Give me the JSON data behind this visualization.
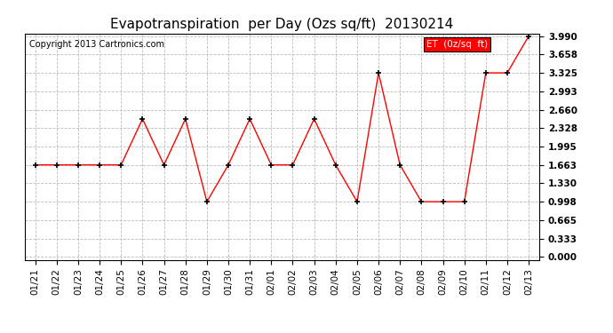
{
  "title": "Evapotranspiration  per Day (Ozs sq/ft)  20130214",
  "copyright": "Copyright 2013 Cartronics.com",
  "legend_label": "ET  (0z/sq  ft)",
  "x_labels": [
    "01/21",
    "01/22",
    "01/23",
    "01/24",
    "01/25",
    "01/26",
    "01/27",
    "01/28",
    "01/29",
    "01/30",
    "01/31",
    "02/01",
    "02/02",
    "02/03",
    "02/04",
    "02/05",
    "02/06",
    "02/07",
    "02/08",
    "02/09",
    "02/10",
    "02/11",
    "02/12",
    "02/13"
  ],
  "y_values": [
    1.663,
    1.663,
    1.663,
    1.663,
    1.663,
    2.494,
    1.663,
    2.494,
    0.998,
    1.663,
    2.494,
    1.663,
    1.663,
    2.494,
    1.663,
    0.998,
    3.325,
    1.663,
    0.998,
    0.998,
    0.998,
    3.325,
    3.325,
    3.99
  ],
  "y_ticks": [
    0.0,
    0.333,
    0.665,
    0.998,
    1.33,
    1.663,
    1.995,
    2.328,
    2.66,
    2.993,
    3.325,
    3.658,
    3.99
  ],
  "line_color": "red",
  "marker_color": "black",
  "bg_color": "white",
  "grid_color": "#bbbbbb",
  "legend_bg": "red",
  "legend_text_color": "white",
  "title_fontsize": 11,
  "tick_fontsize": 7.5,
  "copyright_fontsize": 7,
  "legend_fontsize": 7.5,
  "ylim": [
    0.0,
    3.99
  ]
}
